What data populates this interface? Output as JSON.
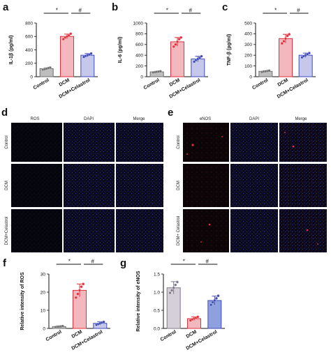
{
  "panel_letters": [
    "a",
    "b",
    "c",
    "d",
    "e",
    "f",
    "g"
  ],
  "chart_data": [
    {
      "id": "a",
      "type": "bar",
      "ylabel": "IL-1β (pg/ml)",
      "ylim": [
        0,
        800
      ],
      "yticks": [
        0,
        200,
        400,
        600,
        800
      ],
      "categories": [
        "Control",
        "DCM",
        "DCM+Celastrol"
      ],
      "values": [
        120,
        600,
        320
      ],
      "errors": [
        12,
        35,
        25
      ],
      "points": [
        [
          105,
          112,
          120,
          128,
          135
        ],
        [
          560,
          585,
          600,
          615,
          640
        ],
        [
          295,
          310,
          320,
          330,
          345
        ]
      ],
      "colors": [
        "#bdbdbd",
        "#f2b8bd",
        "#c5c8ea"
      ],
      "edge_colors": [
        "#6e6e6e",
        "#e0303c",
        "#3f4ab8"
      ],
      "significance": [
        "*",
        "#"
      ]
    },
    {
      "id": "b",
      "type": "bar",
      "ylabel": "IL-6 (pg/ml)",
      "ylim": [
        0,
        1000
      ],
      "yticks": [
        0,
        200,
        400,
        600,
        800,
        1000
      ],
      "categories": [
        "Control",
        "DCM",
        "DCM+Celastrol"
      ],
      "values": [
        90,
        650,
        330
      ],
      "errors": [
        10,
        80,
        50
      ],
      "points": [
        [
          80,
          86,
          90,
          95,
          100
        ],
        [
          560,
          600,
          650,
          700,
          730
        ],
        [
          280,
          310,
          330,
          350,
          380
        ]
      ],
      "colors": [
        "#bdbdbd",
        "#f2b8bd",
        "#c5c8ea"
      ],
      "edge_colors": [
        "#6e6e6e",
        "#e0303c",
        "#3f4ab8"
      ],
      "significance": [
        "*",
        "#"
      ]
    },
    {
      "id": "c",
      "type": "bar",
      "ylabel": "TNF-β (pg/ml)",
      "ylim": [
        0,
        500
      ],
      "yticks": [
        0,
        100,
        200,
        300,
        400,
        500
      ],
      "categories": [
        "Control",
        "DCM",
        "DCM+Celastrol"
      ],
      "values": [
        50,
        355,
        200
      ],
      "errors": [
        6,
        40,
        20
      ],
      "points": [
        [
          44,
          48,
          50,
          53,
          56
        ],
        [
          310,
          330,
          355,
          380,
          395
        ],
        [
          180,
          192,
          200,
          210,
          220
        ]
      ],
      "colors": [
        "#bdbdbd",
        "#f2b8bd",
        "#c5c8ea"
      ],
      "edge_colors": [
        "#6e6e6e",
        "#e0303c",
        "#3f4ab8"
      ],
      "significance": [
        "*",
        "#"
      ]
    },
    {
      "id": "f",
      "type": "bar",
      "ylabel": "Relative intensity of ROS",
      "ylim": [
        0,
        30
      ],
      "yticks": [
        0,
        10,
        20,
        30
      ],
      "categories": [
        "Control",
        "DCM",
        "DCM+Celastrol"
      ],
      "values": [
        1,
        21,
        2.8
      ],
      "errors": [
        0.4,
        3.5,
        0.9
      ],
      "points": [
        [
          0.7,
          0.9,
          1.0,
          1.1,
          1.3
        ],
        [
          17,
          19,
          21,
          23,
          24.5
        ],
        [
          2.0,
          2.4,
          2.8,
          3.2,
          3.6
        ]
      ],
      "colors": [
        "#bdbdbd",
        "#f2b8bd",
        "#c5c8ea"
      ],
      "edge_colors": [
        "#6e6e6e",
        "#e0303c",
        "#3f4ab8"
      ],
      "significance": [
        "*",
        "#"
      ]
    },
    {
      "id": "g",
      "type": "bar",
      "ylabel": "Relative intensity of eNOS",
      "ylim": [
        0,
        1.5
      ],
      "yticks": [
        0.0,
        0.5,
        1.0,
        1.5
      ],
      "categories": [
        "Control",
        "DCM",
        "DCM+Celastrol"
      ],
      "values": [
        1.12,
        0.27,
        0.77
      ],
      "errors": [
        0.17,
        0.05,
        0.12
      ],
      "points": [
        [
          0.98,
          1.05,
          1.12,
          1.2,
          1.28
        ],
        [
          0.22,
          0.25,
          0.27,
          0.29,
          0.32
        ],
        [
          0.65,
          0.72,
          0.77,
          0.83,
          0.9
        ]
      ],
      "colors": [
        "#d4cfd9",
        "#f2b8bd",
        "#8ea0dd"
      ],
      "edge_colors": [
        "#7e7788",
        "#e0303c",
        "#3f4ab8"
      ],
      "significance": [
        "*",
        "#"
      ]
    }
  ],
  "micrographs": {
    "d": {
      "columns": [
        "ROS",
        "DAPI",
        "Merge"
      ],
      "rows": [
        "Control",
        "DCM",
        "DCM+Celastrol"
      ]
    },
    "e": {
      "columns": [
        "eNOS",
        "DAPI",
        "Merge"
      ],
      "rows": [
        "Control",
        "DCM",
        "DCM+ Celastrol"
      ]
    }
  }
}
